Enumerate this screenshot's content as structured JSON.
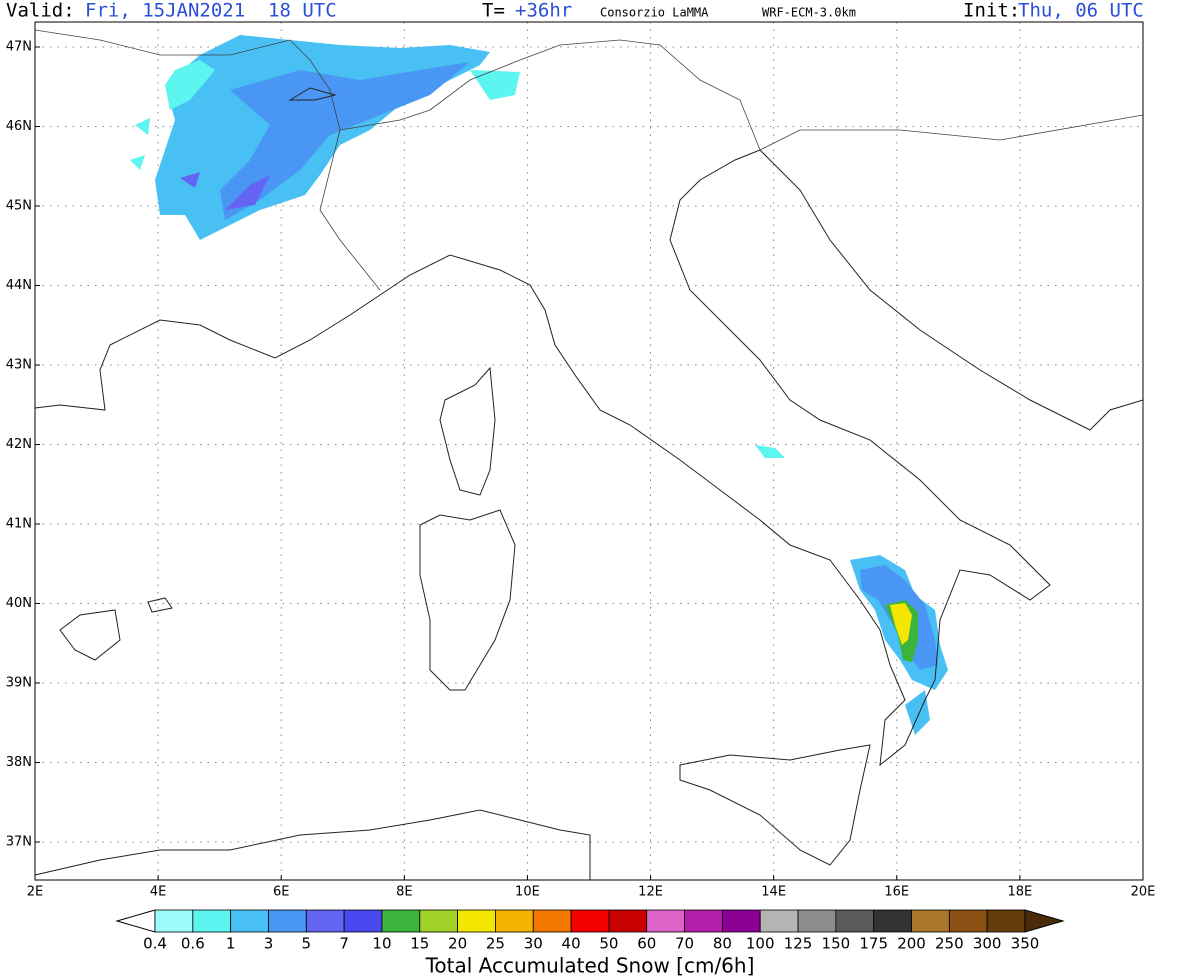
{
  "header": {
    "valid_label": "Valid:",
    "valid_value": "Fri, 15JAN2021  18 UTC",
    "time_label": "T=",
    "time_value": "+36hr",
    "source": "Consorzio LaMMA",
    "model": "WRF-ECM-3.0km",
    "init_label": "Init:",
    "init_value": "Thu, 06 UTC"
  },
  "map": {
    "lat_ticks": [
      "47N",
      "46N",
      "45N",
      "44N",
      "43N",
      "42N",
      "41N",
      "40N",
      "39N",
      "38N",
      "37N"
    ],
    "lon_ticks": [
      "2E",
      "4E",
      "6E",
      "8E",
      "10E",
      "12E",
      "14E",
      "16E",
      "18E",
      "20E"
    ]
  },
  "colorbar": {
    "title": "Total Accumulated Snow [cm/6h]",
    "labels": [
      "0.4",
      "0.6",
      "1",
      "3",
      "5",
      "7",
      "10",
      "15",
      "20",
      "25",
      "30",
      "40",
      "50",
      "60",
      "70",
      "80",
      "100",
      "125",
      "150",
      "175",
      "200",
      "250",
      "300",
      "350"
    ],
    "colors": [
      "#9ffcfc",
      "#5cf5f0",
      "#48c0f4",
      "#4a96f4",
      "#6464f4",
      "#4848f0",
      "#3cb43c",
      "#a0d228",
      "#f4e600",
      "#f4b400",
      "#f47800",
      "#f40000",
      "#c80000",
      "#dc64c8",
      "#b41eaa",
      "#8c0096",
      "#b4b4b4",
      "#8c8c8c",
      "#5a5a5a",
      "#323232",
      "#aa7828",
      "#8c5014",
      "#643c0a"
    ],
    "low_color": "#ffffff",
    "high_color": "#4b2a08"
  }
}
